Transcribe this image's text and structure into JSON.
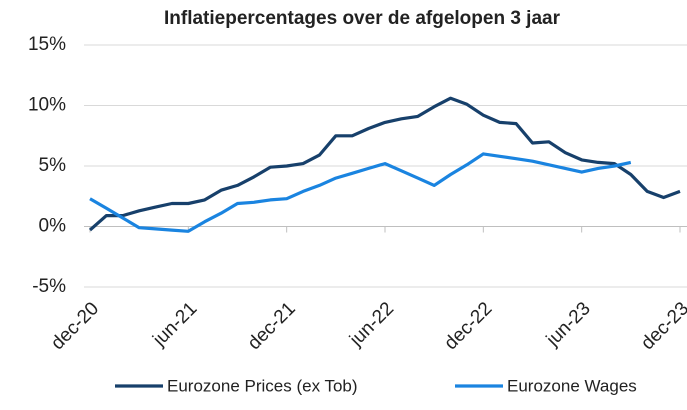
{
  "chart_data": {
    "type": "line",
    "title": "Inflatiepercentages over de afgelopen 3 jaar",
    "categories": [
      "dec-20",
      null,
      null,
      null,
      null,
      null,
      "jun-21",
      null,
      null,
      null,
      null,
      null,
      "dec-21",
      null,
      null,
      null,
      null,
      null,
      "jun-22",
      null,
      null,
      null,
      null,
      null,
      "dec-22",
      null,
      null,
      null,
      null,
      null,
      "jun-23",
      null,
      null,
      null,
      null,
      null,
      "dec-23"
    ],
    "series": [
      {
        "name": "Eurozone Prices (ex Tob)",
        "color": "#17406b",
        "values": [
          -0.3,
          0.9,
          0.9,
          1.3,
          1.6,
          1.9,
          1.9,
          2.2,
          3.0,
          3.4,
          4.1,
          4.9,
          5.0,
          5.2,
          5.9,
          7.5,
          7.5,
          8.1,
          8.6,
          8.9,
          9.1,
          9.9,
          10.6,
          10.1,
          9.2,
          8.6,
          8.5,
          6.9,
          7.0,
          6.1,
          5.5,
          5.3,
          5.2,
          4.3,
          2.9,
          2.4,
          2.9
        ]
      },
      {
        "name": "Eurozone Wages",
        "color": "#1a84e0",
        "values": [
          2.3,
          1.5,
          0.7,
          -0.1,
          -0.2,
          -0.3,
          -0.4,
          0.4,
          1.1,
          1.9,
          2.0,
          2.2,
          2.3,
          2.9,
          3.4,
          4.0,
          4.4,
          4.8,
          5.2,
          4.6,
          4.0,
          3.4,
          4.3,
          5.1,
          6.0,
          5.8,
          5.6,
          5.4,
          5.1,
          4.8,
          4.5,
          4.8,
          5.0,
          5.3,
          null,
          null,
          null
        ]
      }
    ],
    "ylim": [
      -5,
      15
    ],
    "yticks": [
      {
        "value": -5,
        "label": "-5%"
      },
      {
        "value": 0,
        "label": "0%"
      },
      {
        "value": 5,
        "label": "5%"
      },
      {
        "value": 10,
        "label": "10%"
      },
      {
        "value": 15,
        "label": "15%"
      }
    ],
    "grid": true,
    "legend": "bottom"
  }
}
